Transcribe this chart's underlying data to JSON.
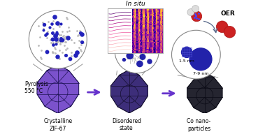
{
  "bg_color": "#ffffff",
  "crystal1_color": "#7B52CC",
  "crystal1_edge": "#1a1050",
  "crystal2_color": "#3D2E7A",
  "crystal2_edge": "#150f30",
  "crystal3_color": "#252530",
  "crystal3_edge": "#0a0a15",
  "arrow_color": "#6633CC",
  "label1": "Crystalline\nZIF-67",
  "label2": "Disordered\nstate",
  "label3": "Co nano-\nparticles",
  "label_pyrolysis": "Pyrolysis\n550 °C",
  "label_insitu": "In situ",
  "label_oer": "OER",
  "label_15nm": "1.5 nm",
  "label_79nm": "7-9 nm",
  "text_fontsize": 6.5,
  "small_fontsize": 5.5,
  "tiny_fontsize": 4.5
}
